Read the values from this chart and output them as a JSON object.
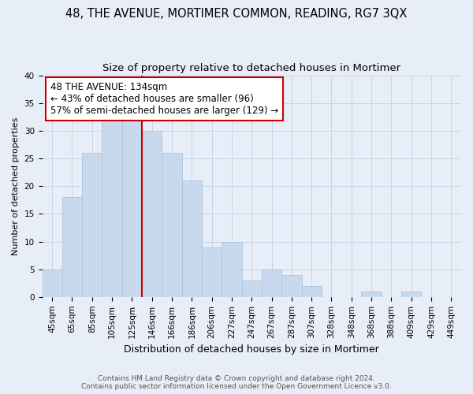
{
  "title": "48, THE AVENUE, MORTIMER COMMON, READING, RG7 3QX",
  "subtitle": "Size of property relative to detached houses in Mortimer",
  "xlabel": "Distribution of detached houses by size in Mortimer",
  "ylabel": "Number of detached properties",
  "categories": [
    "45sqm",
    "65sqm",
    "85sqm",
    "105sqm",
    "125sqm",
    "146sqm",
    "166sqm",
    "186sqm",
    "206sqm",
    "227sqm",
    "247sqm",
    "267sqm",
    "287sqm",
    "307sqm",
    "328sqm",
    "348sqm",
    "368sqm",
    "388sqm",
    "409sqm",
    "429sqm",
    "449sqm"
  ],
  "values": [
    5,
    18,
    26,
    32,
    32,
    30,
    26,
    21,
    9,
    10,
    3,
    5,
    4,
    2,
    0,
    0,
    1,
    0,
    1,
    0,
    0
  ],
  "bar_color": "#c8d9ee",
  "bar_edge_color": "#aac4e0",
  "grid_color": "#c8d4e8",
  "background_color": "#e8eef8",
  "annotation_line1": "48 THE AVENUE: 134sqm",
  "annotation_line2": "← 43% of detached houses are smaller (96)",
  "annotation_line3": "57% of semi-detached houses are larger (129) →",
  "vline_color": "#cc0000",
  "annotation_box_facecolor": "#ffffff",
  "annotation_box_edgecolor": "#cc0000",
  "ylim": [
    0,
    40
  ],
  "yticks": [
    0,
    5,
    10,
    15,
    20,
    25,
    30,
    35,
    40
  ],
  "footer_line1": "Contains HM Land Registry data © Crown copyright and database right 2024.",
  "footer_line2": "Contains public sector information licensed under the Open Government Licence v3.0.",
  "title_fontsize": 10.5,
  "subtitle_fontsize": 9.5,
  "xlabel_fontsize": 9,
  "ylabel_fontsize": 8,
  "tick_fontsize": 7.5,
  "annotation_fontsize": 8.5,
  "footer_fontsize": 6.5
}
